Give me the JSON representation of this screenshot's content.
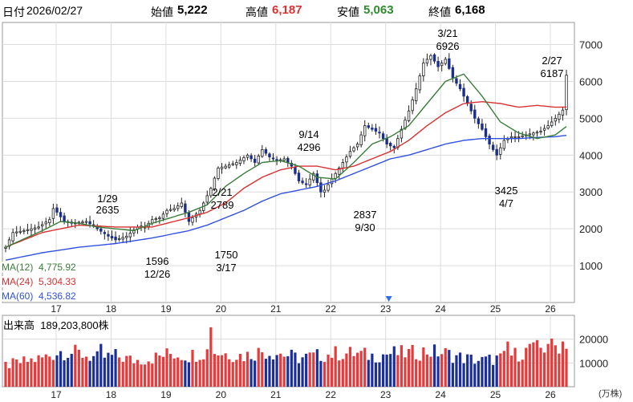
{
  "header": {
    "date_label": "日付",
    "date": "2026/02/27",
    "open_label": "始値",
    "open": "5,222",
    "high_label": "高値",
    "high": "6,187",
    "low_label": "安値",
    "low": "5,063",
    "close_label": "終値",
    "close": "6,168",
    "colors": {
      "high": "#e03030",
      "low": "#2e8b2e"
    }
  },
  "chart_data": {
    "type": "candlestick",
    "price_axis": {
      "ticks": [
        "1000",
        "2000",
        "3000",
        "4000",
        "5000",
        "6000",
        "7000"
      ],
      "ylim": [
        0,
        7600
      ]
    },
    "volume_axis": {
      "label": "出来高",
      "value": "189,203,800株",
      "ticks": [
        "10000",
        "20000"
      ],
      "unit": "(万株)",
      "ylim": [
        0,
        30000
      ]
    },
    "x_ticks": [
      "17",
      "18",
      "19",
      "20",
      "21",
      "22",
      "23",
      "24",
      "25",
      "26"
    ],
    "annotations": [
      {
        "date": "1/29",
        "value": "2635"
      },
      {
        "date": "12/26",
        "value": "1596"
      },
      {
        "date": "2/21",
        "value": "2789"
      },
      {
        "date": "3/17",
        "value": "1750"
      },
      {
        "date": "9/14",
        "value": "4296"
      },
      {
        "date": "9/30",
        "value": "2837"
      },
      {
        "date": "3/21",
        "value": "6926"
      },
      {
        "date": "4/7",
        "value": "3425"
      },
      {
        "date": "2/27",
        "value": "6187"
      }
    ],
    "moving_averages": [
      {
        "name": "MA(12)",
        "value": "4,775.92",
        "color": "#3a7d3a"
      },
      {
        "name": "MA(24)",
        "value": "5,304.33",
        "color": "#d83030"
      },
      {
        "name": "MA(60)",
        "value": "4,536.82",
        "color": "#3050e0"
      }
    ],
    "close_path": [
      [
        0,
        1500
      ],
      [
        2,
        1900
      ],
      [
        5,
        1950
      ],
      [
        9,
        2050
      ],
      [
        12,
        2250
      ],
      [
        13,
        2550
      ],
      [
        14,
        2450
      ],
      [
        16,
        2200
      ],
      [
        18,
        2150
      ],
      [
        22,
        2200
      ],
      [
        25,
        2000
      ],
      [
        28,
        1800
      ],
      [
        30,
        1700
      ],
      [
        33,
        1800
      ],
      [
        36,
        2050
      ],
      [
        38,
        2050
      ],
      [
        40,
        2250
      ],
      [
        42,
        2300
      ],
      [
        44,
        2500
      ],
      [
        46,
        2550
      ],
      [
        48,
        2700
      ],
      [
        49,
        2450
      ],
      [
        50,
        2200
      ],
      [
        51,
        2300
      ],
      [
        53,
        2500
      ],
      [
        54,
        2700
      ],
      [
        56,
        3100
      ],
      [
        58,
        3650
      ],
      [
        60,
        3700
      ],
      [
        63,
        3800
      ],
      [
        66,
        4000
      ],
      [
        68,
        3800
      ],
      [
        70,
        4150
      ],
      [
        72,
        3950
      ],
      [
        74,
        3850
      ],
      [
        76,
        3900
      ],
      [
        78,
        3700
      ],
      [
        80,
        3300
      ],
      [
        82,
        3200
      ],
      [
        84,
        3500
      ],
      [
        86,
        3000
      ],
      [
        87,
        3050
      ],
      [
        88,
        3200
      ],
      [
        90,
        3500
      ],
      [
        92,
        3800
      ],
      [
        94,
        4100
      ],
      [
        96,
        4300
      ],
      [
        98,
        4800
      ],
      [
        100,
        4700
      ],
      [
        102,
        4600
      ],
      [
        104,
        4300
      ],
      [
        106,
        4200
      ],
      [
        108,
        4700
      ],
      [
        110,
        5200
      ],
      [
        112,
        5800
      ],
      [
        114,
        6500
      ],
      [
        116,
        6700
      ],
      [
        118,
        6400
      ],
      [
        120,
        6600
      ],
      [
        122,
        6100
      ],
      [
        124,
        5800
      ],
      [
        126,
        5400
      ],
      [
        128,
        5000
      ],
      [
        130,
        4700
      ],
      [
        132,
        4300
      ],
      [
        134,
        4000
      ],
      [
        136,
        4400
      ],
      [
        138,
        4500
      ],
      [
        140,
        4500
      ],
      [
        142,
        4550
      ],
      [
        144,
        4600
      ],
      [
        146,
        4650
      ],
      [
        148,
        4800
      ],
      [
        150,
        5000
      ],
      [
        152,
        5222
      ],
      [
        153,
        6168
      ]
    ],
    "ma12_path": [
      [
        0,
        1500
      ],
      [
        10,
        1950
      ],
      [
        15,
        2200
      ],
      [
        20,
        2150
      ],
      [
        25,
        2050
      ],
      [
        30,
        2000
      ],
      [
        35,
        1950
      ],
      [
        40,
        2150
      ],
      [
        45,
        2300
      ],
      [
        50,
        2450
      ],
      [
        55,
        2650
      ],
      [
        60,
        3150
      ],
      [
        65,
        3500
      ],
      [
        70,
        3800
      ],
      [
        75,
        3850
      ],
      [
        80,
        3700
      ],
      [
        85,
        3400
      ],
      [
        90,
        3350
      ],
      [
        95,
        3800
      ],
      [
        100,
        4300
      ],
      [
        105,
        4500
      ],
      [
        110,
        4800
      ],
      [
        115,
        5400
      ],
      [
        120,
        6000
      ],
      [
        125,
        6200
      ],
      [
        130,
        5600
      ],
      [
        135,
        4900
      ],
      [
        140,
        4600
      ],
      [
        145,
        4450
      ],
      [
        150,
        4550
      ],
      [
        153,
        4776
      ]
    ],
    "ma24_path": [
      [
        0,
        1500
      ],
      [
        10,
        1900
      ],
      [
        20,
        2100
      ],
      [
        30,
        2050
      ],
      [
        40,
        2050
      ],
      [
        50,
        2300
      ],
      [
        55,
        2450
      ],
      [
        60,
        2700
      ],
      [
        65,
        3100
      ],
      [
        70,
        3400
      ],
      [
        75,
        3600
      ],
      [
        80,
        3700
      ],
      [
        85,
        3700
      ],
      [
        90,
        3600
      ],
      [
        95,
        3700
      ],
      [
        100,
        3900
      ],
      [
        105,
        4100
      ],
      [
        110,
        4400
      ],
      [
        115,
        4800
      ],
      [
        120,
        5150
      ],
      [
        125,
        5400
      ],
      [
        130,
        5450
      ],
      [
        135,
        5400
      ],
      [
        140,
        5300
      ],
      [
        145,
        5350
      ],
      [
        150,
        5300
      ],
      [
        153,
        5304
      ]
    ],
    "ma60_path": [
      [
        0,
        1150
      ],
      [
        10,
        1350
      ],
      [
        20,
        1500
      ],
      [
        30,
        1600
      ],
      [
        40,
        1750
      ],
      [
        50,
        1950
      ],
      [
        55,
        2100
      ],
      [
        60,
        2300
      ],
      [
        65,
        2500
      ],
      [
        70,
        2750
      ],
      [
        75,
        2950
      ],
      [
        80,
        3050
      ],
      [
        85,
        3150
      ],
      [
        90,
        3300
      ],
      [
        95,
        3500
      ],
      [
        100,
        3700
      ],
      [
        105,
        3900
      ],
      [
        110,
        4000
      ],
      [
        115,
        4150
      ],
      [
        120,
        4300
      ],
      [
        125,
        4400
      ],
      [
        130,
        4450
      ],
      [
        135,
        4450
      ],
      [
        140,
        4450
      ],
      [
        145,
        4480
      ],
      [
        150,
        4500
      ],
      [
        153,
        4537
      ]
    ],
    "volume_path": [
      [
        0,
        9000
      ],
      [
        10,
        12000
      ],
      [
        15,
        15000
      ],
      [
        20,
        14000
      ],
      [
        25,
        12000
      ],
      [
        30,
        13000
      ],
      [
        35,
        11000
      ],
      [
        40,
        12000
      ],
      [
        45,
        14000
      ],
      [
        50,
        13000
      ],
      [
        55,
        15000
      ],
      [
        60,
        14000
      ],
      [
        65,
        13000
      ],
      [
        70,
        15000
      ],
      [
        75,
        14000
      ],
      [
        80,
        12000
      ],
      [
        85,
        13000
      ],
      [
        90,
        14000
      ],
      [
        95,
        14000
      ],
      [
        100,
        13000
      ],
      [
        105,
        14000
      ],
      [
        110,
        14000
      ],
      [
        115,
        15000
      ],
      [
        120,
        14000
      ],
      [
        125,
        12000
      ],
      [
        130,
        11000
      ],
      [
        135,
        12000
      ],
      [
        140,
        14000
      ],
      [
        145,
        16000
      ],
      [
        150,
        17000
      ],
      [
        153,
        19000
      ]
    ],
    "volume_spikes": [
      [
        26,
        18000
      ],
      [
        56,
        25000
      ],
      [
        106,
        17000
      ],
      [
        137,
        19000
      ],
      [
        143,
        18000
      ],
      [
        148,
        18000
      ],
      [
        152,
        19000
      ]
    ]
  }
}
